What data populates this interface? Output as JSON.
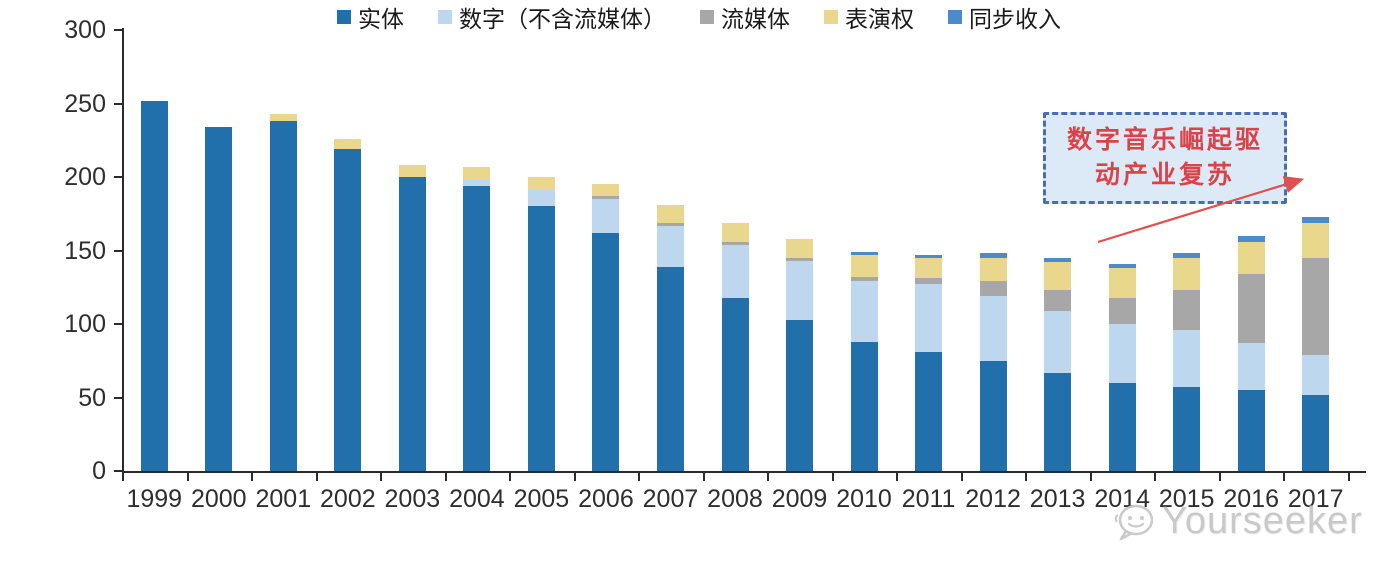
{
  "annotation": {
    "line1": "数字音乐崛起驱",
    "line2": "动产业复苏",
    "text_color": "#d9444a",
    "border_color": "#4a6cb3",
    "fill_color": "#dce9f7",
    "arrow_color": "#e0504e"
  },
  "watermark": {
    "text": "Yourseeker"
  },
  "axis": {
    "line_color": "#2b2b2b",
    "label_color": "#2e2e2e"
  },
  "chart_data": {
    "type": "bar",
    "subtype": "stacked-vertical",
    "title": "",
    "xlabel": "",
    "ylabel": "",
    "grid": false,
    "legend_position": "bottom",
    "ylim": [
      0,
      300
    ],
    "yticks": [
      0,
      50,
      100,
      150,
      200,
      250,
      300
    ],
    "categories": [
      "1999",
      "2000",
      "2001",
      "2002",
      "2003",
      "2004",
      "2005",
      "2006",
      "2007",
      "2008",
      "2009",
      "2010",
      "2011",
      "2012",
      "2013",
      "2014",
      "2015",
      "2016",
      "2017"
    ],
    "series": [
      {
        "key": "physical",
        "name": "实体",
        "color": "#2170ac",
        "values": [
          252,
          234,
          238,
          219,
          200,
          194,
          180,
          162,
          139,
          118,
          103,
          88,
          81,
          75,
          67,
          60,
          57,
          55,
          52
        ]
      },
      {
        "key": "digital",
        "name": "数字（不含流媒体）",
        "color": "#bdd7ee",
        "values": [
          0,
          0,
          0,
          0,
          0,
          4,
          11,
          23,
          28,
          36,
          40,
          41,
          46,
          44,
          42,
          40,
          39,
          32,
          27
        ]
      },
      {
        "key": "streaming",
        "name": "流媒体",
        "color": "#a7a7a7",
        "values": [
          0,
          0,
          0,
          0,
          0,
          0,
          0,
          2,
          2,
          2,
          2,
          3,
          4,
          10,
          14,
          18,
          27,
          47,
          66
        ]
      },
      {
        "key": "performance",
        "name": "表演权",
        "color": "#e9d78e",
        "values": [
          0,
          0,
          5,
          7,
          8,
          9,
          9,
          8,
          12,
          13,
          13,
          15,
          14,
          16,
          19,
          20,
          22,
          22,
          24
        ]
      },
      {
        "key": "sync",
        "name": "同步收入",
        "color": "#4c8bc9",
        "values": [
          0,
          0,
          0,
          0,
          0,
          0,
          0,
          0,
          0,
          0,
          0,
          2,
          2,
          3,
          3,
          3,
          3,
          4,
          4
        ]
      }
    ]
  }
}
